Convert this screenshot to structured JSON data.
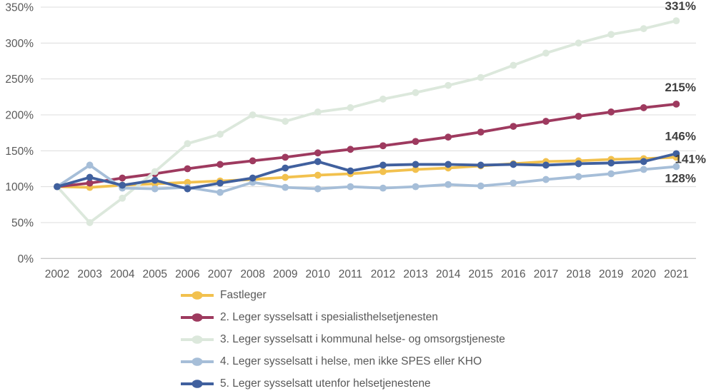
{
  "chart_data": {
    "type": "line",
    "title": "",
    "xlabel": "",
    "ylabel": "",
    "x": [
      "2002",
      "2003",
      "2004",
      "2005",
      "2006",
      "2007",
      "2008",
      "2009",
      "2010",
      "2011",
      "2012",
      "2013",
      "2014",
      "2015",
      "2016",
      "2017",
      "2018",
      "2019",
      "2020",
      "2021"
    ],
    "ylim": [
      0,
      350
    ],
    "ytick_step": 50,
    "ytick_labels": [
      "0%",
      "50%",
      "100%",
      "150%",
      "200%",
      "250%",
      "300%",
      "350%"
    ],
    "grid": true,
    "legend_position": "bottom-left",
    "series": [
      {
        "name": "Fastleger",
        "color": "#F2C14E",
        "end_label": "141%",
        "values": [
          100,
          99,
          102,
          104,
          106,
          108,
          110,
          113,
          116,
          118,
          121,
          124,
          126,
          129,
          132,
          135,
          136,
          138,
          139,
          141
        ]
      },
      {
        "name": "2. Leger sysselsatt i spesialisthelsetjenesten",
        "color": "#9E3A5F",
        "end_label": "215%",
        "values": [
          100,
          105,
          112,
          118,
          125,
          131,
          136,
          141,
          147,
          152,
          157,
          163,
          169,
          176,
          184,
          191,
          198,
          204,
          210,
          215
        ]
      },
      {
        "name": "3. Leger sysselsatt i kommunal helse- og omsorgstjeneste",
        "color": "#DCE8DC",
        "end_label": "331%",
        "values": [
          100,
          50,
          84,
          121,
          160,
          173,
          200,
          191,
          204,
          210,
          222,
          231,
          241,
          252,
          269,
          286,
          300,
          312,
          320,
          331
        ]
      },
      {
        "name": "4. Leger sysselsatt i helse, men ikke SPES eller KHO",
        "color": "#A6BED8",
        "end_label": "128%",
        "values": [
          100,
          130,
          98,
          97,
          99,
          92,
          106,
          99,
          97,
          100,
          98,
          100,
          103,
          101,
          105,
          110,
          114,
          118,
          124,
          128
        ]
      },
      {
        "name": "5. Leger sysselsatt utenfor helsetjenestene",
        "color": "#40609E",
        "end_label": "146%",
        "values": [
          100,
          113,
          102,
          109,
          97,
          105,
          112,
          126,
          135,
          122,
          130,
          131,
          131,
          130,
          131,
          130,
          132,
          133,
          135,
          146
        ]
      }
    ]
  },
  "colors": {
    "background": "#FFFFFF",
    "gridline": "#DCDCDC",
    "axis_line": "#C9C9C9",
    "axis_text": "#595959",
    "end_label_text": "#3F3F3F"
  }
}
